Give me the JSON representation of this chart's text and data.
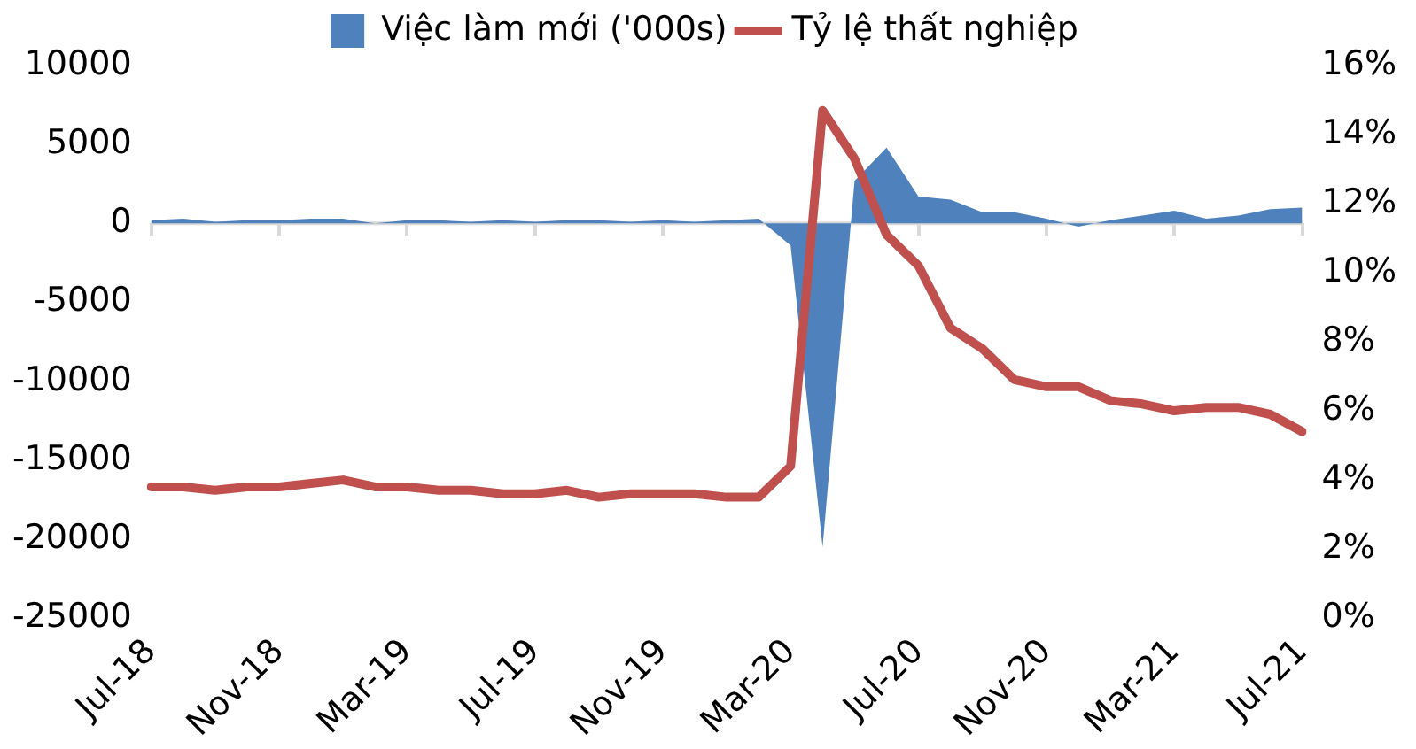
{
  "chart_data": {
    "type": "area",
    "categories": [
      "Jul-18",
      null,
      null,
      null,
      "Nov-18",
      null,
      null,
      null,
      "Mar-19",
      null,
      null,
      null,
      "Jul-19",
      null,
      null,
      null,
      "Nov-19",
      null,
      null,
      null,
      "Mar-20",
      null,
      null,
      null,
      "Jul-20",
      null,
      null,
      null,
      "Nov-20",
      null,
      null,
      null,
      "Mar-21",
      null,
      null,
      null,
      "Jul-21"
    ],
    "series": [
      {
        "name": "Việc làm mới ('000s)",
        "color": "#4f81bd",
        "values": [
          200,
          300,
          100,
          200,
          200,
          300,
          300,
          0,
          200,
          200,
          100,
          200,
          100,
          200,
          200,
          100,
          200,
          100,
          200,
          300,
          -1400,
          -20500,
          2700,
          4800,
          1700,
          1500,
          700,
          700,
          300,
          -200,
          200,
          500,
          800,
          300,
          500,
          900,
          1000
        ]
      },
      {
        "name": "Tỷ lệ thất nghiệp",
        "type": "line",
        "axis": "y2",
        "color": "#c0504d",
        "values": [
          3.8,
          3.8,
          3.7,
          3.8,
          3.8,
          3.9,
          4.0,
          3.8,
          3.8,
          3.7,
          3.7,
          3.6,
          3.6,
          3.7,
          3.5,
          3.6,
          3.6,
          3.6,
          3.5,
          3.5,
          4.4,
          14.7,
          13.3,
          11.1,
          10.2,
          8.4,
          7.8,
          6.9,
          6.7,
          6.7,
          6.3,
          6.2,
          6.0,
          6.1,
          6.1,
          5.9,
          5.4
        ]
      }
    ],
    "ylim": [
      -25000,
      10000
    ],
    "yticks": [
      -25000,
      -20000,
      -15000,
      -10000,
      -5000,
      0,
      5000,
      10000
    ],
    "y2lim": [
      0,
      16
    ],
    "y2ticks": [
      {
        "value": 0,
        "label": "0%"
      },
      {
        "value": 2,
        "label": "2%"
      },
      {
        "value": 4,
        "label": "4%"
      },
      {
        "value": 6,
        "label": "6%"
      },
      {
        "value": 8,
        "label": "8%"
      },
      {
        "value": 10,
        "label": "10%"
      },
      {
        "value": 12,
        "label": "12%"
      },
      {
        "value": 14,
        "label": "14%"
      },
      {
        "value": 16,
        "label": "16%"
      }
    ],
    "ref_lines": [
      {
        "axis": "y",
        "value": 0,
        "color": "#d9d9d9"
      }
    ],
    "grid": false,
    "legend": "top"
  }
}
